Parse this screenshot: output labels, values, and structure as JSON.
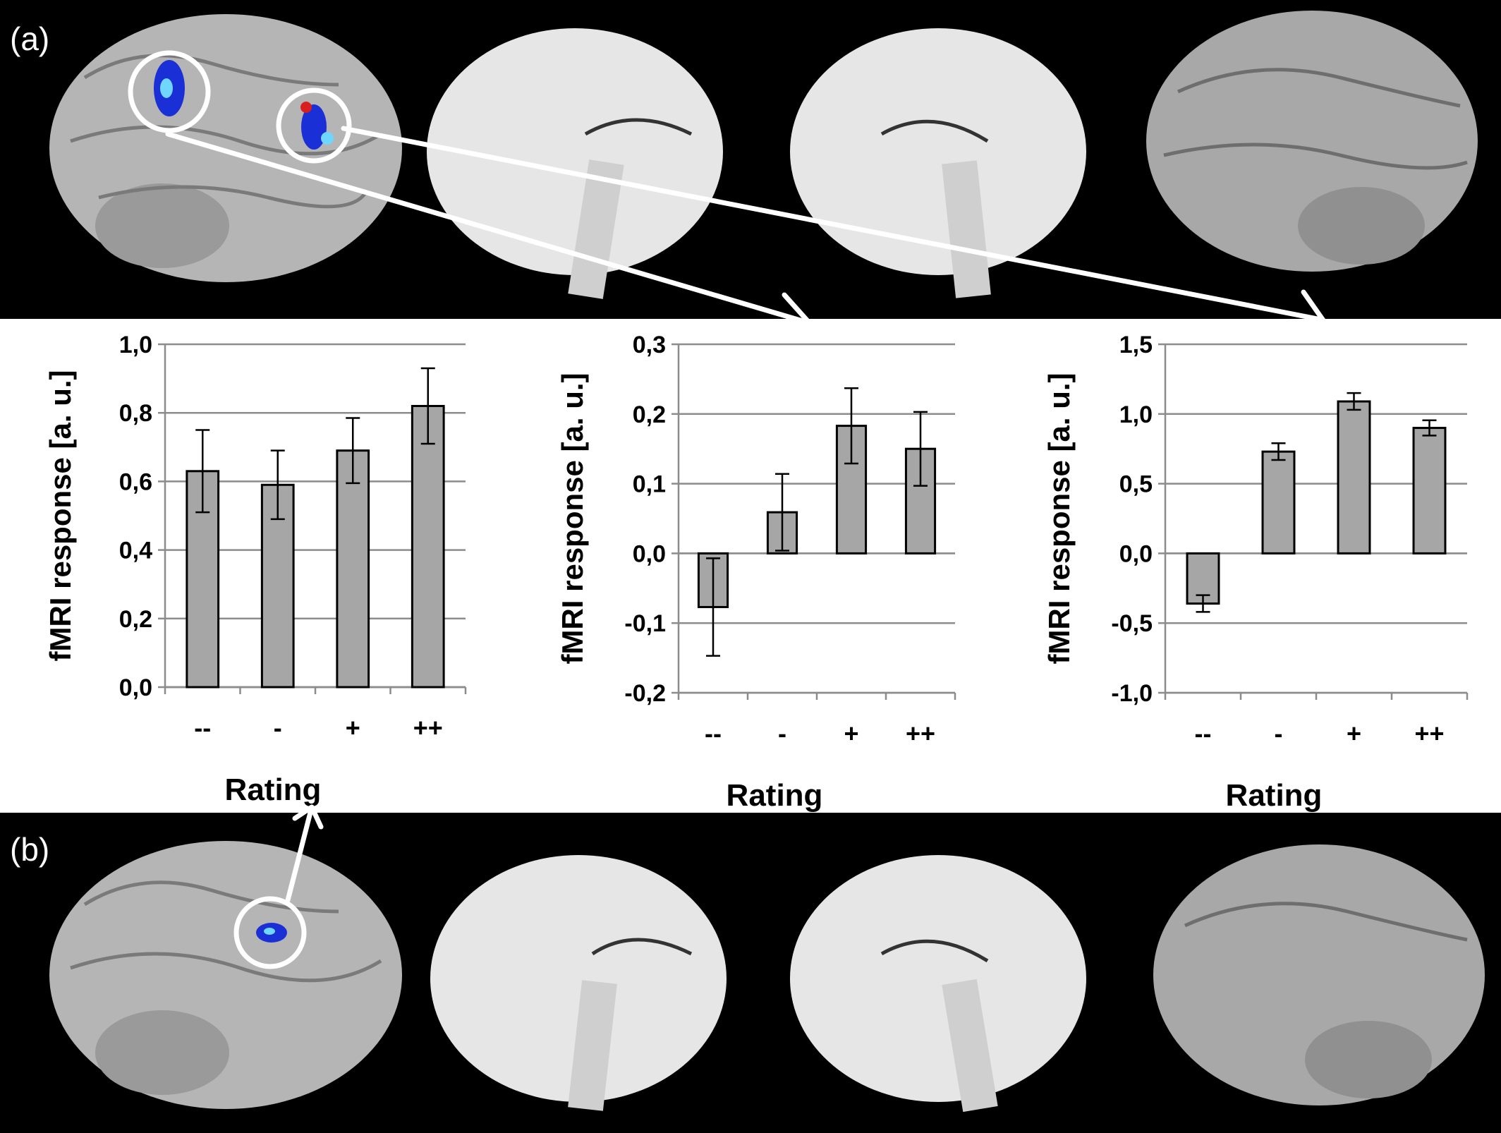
{
  "panel_labels": {
    "a": "(a)",
    "b": "(b)"
  },
  "colors": {
    "bar_fill": "#a6a6a6",
    "bar_stroke": "#000000",
    "grid": "#8c8c8c",
    "brain": "#b9b9b9",
    "activation_blue": "#1a2fd6",
    "activation_cyan": "#6fd6ff",
    "activation_red": "#d81e1e",
    "arrow": "#ffffff"
  },
  "chart_data": [
    {
      "type": "bar",
      "categories": [
        "--",
        "-",
        "+",
        "++"
      ],
      "values": [
        0.63,
        0.59,
        0.69,
        0.82
      ],
      "errors": [
        0.12,
        0.1,
        0.095,
        0.11
      ],
      "title": "",
      "xlabel": "Rating",
      "ylabel": "fMRI response [a. u.]",
      "ylim": [
        0.0,
        1.0
      ],
      "yticks": [
        0.0,
        0.2,
        0.4,
        0.6,
        0.8,
        1.0
      ],
      "ytick_labels": [
        "0,0",
        "0,2",
        "0,4",
        "0,6",
        "0,8",
        "1,0"
      ],
      "grid": true
    },
    {
      "type": "bar",
      "categories": [
        "--",
        "-",
        "+",
        "++"
      ],
      "values": [
        -0.077,
        0.059,
        0.183,
        0.15
      ],
      "errors": [
        0.07,
        0.055,
        0.054,
        0.053
      ],
      "title": "",
      "xlabel": "Rating",
      "ylabel": "fMRI response [a. u.]",
      "ylim": [
        -0.2,
        0.3
      ],
      "yticks": [
        -0.2,
        -0.1,
        0.0,
        0.1,
        0.2,
        0.3
      ],
      "ytick_labels": [
        "-0,2",
        "-0,1",
        "0,0",
        "0,1",
        "0,2",
        "0,3"
      ],
      "grid": true
    },
    {
      "type": "bar",
      "categories": [
        "--",
        "-",
        "+",
        "++"
      ],
      "values": [
        -0.36,
        0.73,
        1.09,
        0.9
      ],
      "errors": [
        0.06,
        0.06,
        0.06,
        0.055
      ],
      "title": "",
      "xlabel": "Rating",
      "ylabel": "fMRI response [a. u.]",
      "ylim": [
        -1.0,
        1.5
      ],
      "yticks": [
        -1.0,
        -0.5,
        0.0,
        0.5,
        1.0,
        1.5
      ],
      "ytick_labels": [
        "-1,0",
        "-0,5",
        "0,0",
        "0,5",
        "1,0",
        "1,5"
      ],
      "grid": true
    }
  ]
}
